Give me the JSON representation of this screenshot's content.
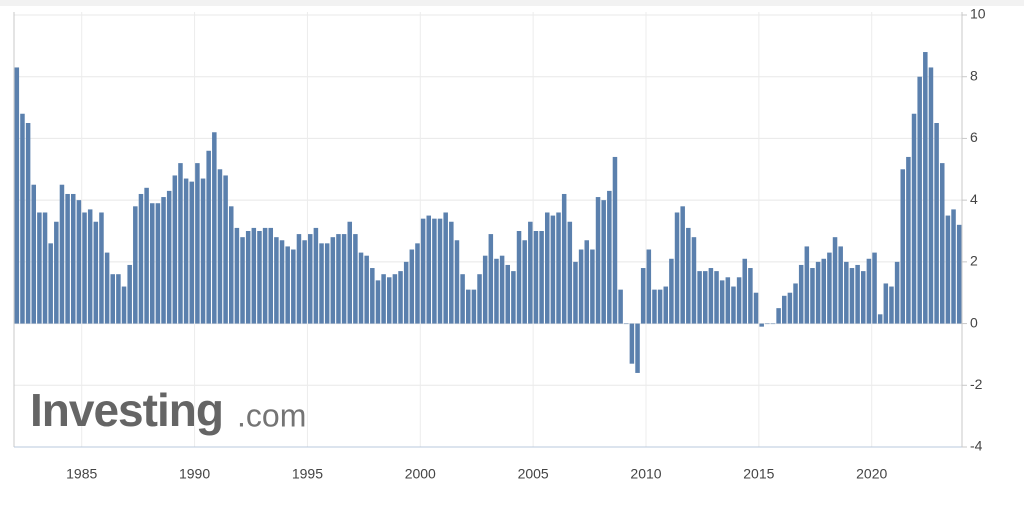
{
  "chart_data": {
    "type": "bar",
    "x": [
      1982,
      1982.25,
      1982.5,
      1982.75,
      1983,
      1983.25,
      1983.5,
      1983.75,
      1984,
      1984.25,
      1984.5,
      1984.75,
      1985,
      1985.25,
      1985.5,
      1985.75,
      1986,
      1986.25,
      1986.5,
      1986.75,
      1987,
      1987.25,
      1987.5,
      1987.75,
      1988,
      1988.25,
      1988.5,
      1988.75,
      1989,
      1989.25,
      1989.5,
      1989.75,
      1990,
      1990.25,
      1990.5,
      1990.75,
      1991,
      1991.25,
      1991.5,
      1991.75,
      1992,
      1992.25,
      1992.5,
      1992.75,
      1993,
      1993.25,
      1993.5,
      1993.75,
      1994,
      1994.25,
      1994.5,
      1994.75,
      1995,
      1995.25,
      1995.5,
      1995.75,
      1996,
      1996.25,
      1996.5,
      1996.75,
      1997,
      1997.25,
      1997.5,
      1997.75,
      1998,
      1998.25,
      1998.5,
      1998.75,
      1999,
      1999.25,
      1999.5,
      1999.75,
      2000,
      2000.25,
      2000.5,
      2000.75,
      2001,
      2001.25,
      2001.5,
      2001.75,
      2002,
      2002.25,
      2002.5,
      2002.75,
      2003,
      2003.25,
      2003.5,
      2003.75,
      2004,
      2004.25,
      2004.5,
      2004.75,
      2005,
      2005.25,
      2005.5,
      2005.75,
      2006,
      2006.25,
      2006.5,
      2006.75,
      2007,
      2007.25,
      2007.5,
      2007.75,
      2008,
      2008.25,
      2008.5,
      2008.75,
      2009,
      2009.25,
      2009.5,
      2009.75,
      2010,
      2010.25,
      2010.5,
      2010.75,
      2011,
      2011.25,
      2011.5,
      2011.75,
      2012,
      2012.25,
      2012.5,
      2012.75,
      2013,
      2013.25,
      2013.5,
      2013.75,
      2014,
      2014.25,
      2014.5,
      2014.75,
      2015,
      2015.25,
      2015.5,
      2015.75,
      2016,
      2016.25,
      2016.5,
      2016.75,
      2017,
      2017.25,
      2017.5,
      2017.75,
      2018,
      2018.25,
      2018.5,
      2018.75,
      2019,
      2019.25,
      2019.5,
      2019.75,
      2020,
      2020.25,
      2020.5,
      2020.75,
      2021,
      2021.25,
      2021.5,
      2021.75,
      2022,
      2022.25,
      2022.5,
      2022.75,
      2023,
      2023.25,
      2023.5,
      2023.75
    ],
    "values": [
      8.3,
      6.8,
      6.5,
      4.5,
      3.6,
      3.6,
      2.6,
      3.3,
      4.5,
      4.2,
      4.2,
      4.0,
      3.6,
      3.7,
      3.3,
      3.6,
      2.3,
      1.6,
      1.6,
      1.2,
      1.9,
      3.8,
      4.2,
      4.4,
      3.9,
      3.9,
      4.1,
      4.3,
      4.8,
      5.2,
      4.7,
      4.6,
      5.2,
      4.7,
      5.6,
      6.2,
      5.0,
      4.8,
      3.8,
      3.1,
      2.8,
      3.0,
      3.1,
      3.0,
      3.1,
      3.1,
      2.8,
      2.7,
      2.5,
      2.4,
      2.9,
      2.7,
      2.9,
      3.1,
      2.6,
      2.6,
      2.8,
      2.9,
      2.9,
      3.3,
      2.9,
      2.3,
      2.2,
      1.8,
      1.4,
      1.6,
      1.5,
      1.6,
      1.7,
      2.0,
      2.4,
      2.6,
      3.4,
      3.5,
      3.4,
      3.4,
      3.6,
      3.3,
      2.7,
      1.6,
      1.1,
      1.1,
      1.6,
      2.2,
      2.9,
      2.1,
      2.2,
      1.9,
      1.7,
      3.0,
      2.7,
      3.3,
      3.0,
      3.0,
      3.6,
      3.5,
      3.6,
      4.2,
      3.3,
      2.0,
      2.4,
      2.7,
      2.4,
      4.1,
      4.0,
      4.3,
      5.4,
      1.1,
      0.0,
      -1.3,
      -1.6,
      1.8,
      2.4,
      1.1,
      1.1,
      1.2,
      2.1,
      3.6,
      3.8,
      3.1,
      2.8,
      1.7,
      1.7,
      1.8,
      1.7,
      1.4,
      1.5,
      1.2,
      1.5,
      2.1,
      1.8,
      1.0,
      -0.1,
      0.0,
      0.0,
      0.5,
      0.9,
      1.0,
      1.3,
      1.9,
      2.5,
      1.8,
      2.0,
      2.1,
      2.3,
      2.8,
      2.5,
      2.0,
      1.8,
      1.9,
      1.7,
      2.1,
      2.3,
      0.3,
      1.3,
      1.2,
      2.0,
      5.0,
      5.4,
      6.8,
      8.0,
      8.8,
      8.3,
      6.5,
      5.2,
      3.5,
      3.7,
      3.2
    ],
    "color": "#5b80ad",
    "xlim": [
      1982,
      2024
    ],
    "xticks": [
      1985,
      1990,
      1995,
      2000,
      2005,
      2010,
      2015,
      2020
    ],
    "ylim": [
      -4,
      10
    ],
    "yticks": [
      -4,
      -2,
      0,
      2,
      4,
      6,
      8,
      10
    ],
    "grid": true,
    "watermark": {
      "brand": "Investing",
      "suffix": ".com"
    }
  }
}
